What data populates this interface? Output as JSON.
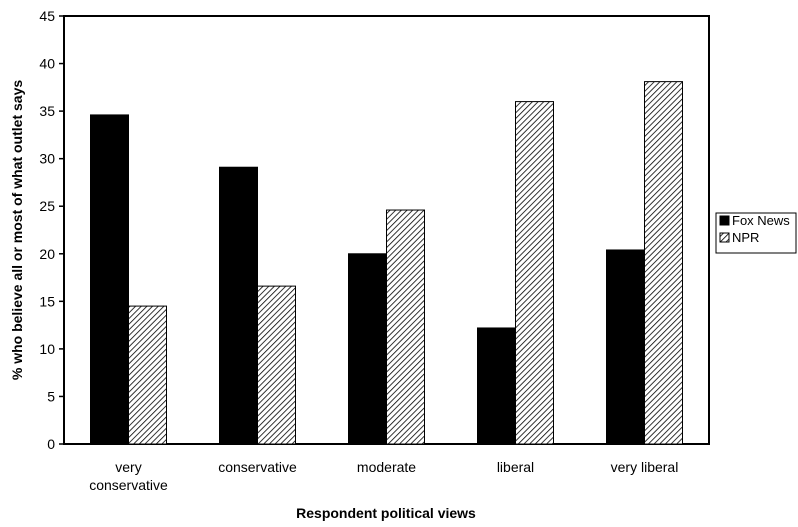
{
  "chart_data": {
    "type": "bar",
    "categories": [
      [
        "very",
        "conservative"
      ],
      [
        "conservative"
      ],
      [
        "moderate"
      ],
      [
        "liberal"
      ],
      [
        "very liberal"
      ]
    ],
    "series": [
      {
        "name": "Fox News",
        "values": [
          34.6,
          29.1,
          20.0,
          12.2,
          20.4
        ],
        "color": "#000000",
        "pattern": "solid"
      },
      {
        "name": "NPR",
        "values": [
          14.5,
          16.6,
          24.6,
          36.0,
          38.1
        ],
        "color": "#000000",
        "pattern": "diagonal-hatch"
      }
    ],
    "title": "",
    "xlabel": "Respondent political views",
    "ylabel": "% who believe all or most of what outlet says",
    "ylim": [
      0,
      45
    ],
    "yticks": [
      0,
      5,
      10,
      15,
      20,
      25,
      30,
      35,
      40,
      45
    ],
    "grid": false,
    "legend_position": "right"
  }
}
